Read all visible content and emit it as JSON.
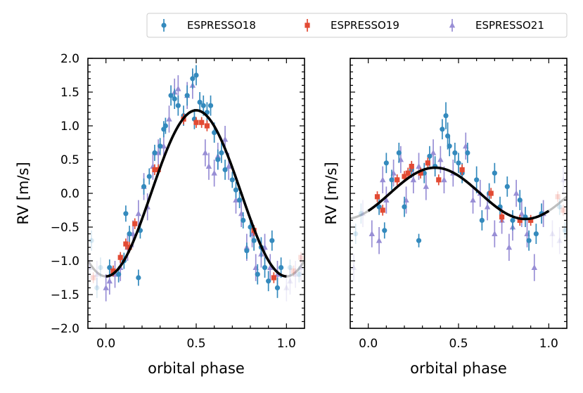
{
  "chart_data": [
    {
      "type": "scatter",
      "panel": "left",
      "title": "",
      "xlabel": "orbital phase",
      "ylabel": "RV [m/s]",
      "xlim": [
        -0.1,
        1.1
      ],
      "ylim": [
        -2.0,
        2.0
      ],
      "xticks": [
        0.0,
        0.5,
        1.0
      ],
      "xtick_labels": [
        "0.0",
        "0.5",
        "1.0"
      ],
      "yticks": [
        -2.0,
        -1.5,
        -1.0,
        -0.5,
        0.0,
        0.5,
        1.0,
        1.5,
        2.0
      ],
      "ytick_labels": [
        "−2.0",
        "−1.5",
        "−1.0",
        "−0.5",
        "0.0",
        "0.5",
        "1.0",
        "1.5",
        "2.0"
      ],
      "model": {
        "amplitude": 1.23,
        "peak_phase": 0.5,
        "harmonic": 1,
        "style": "black dashed over black solid"
      },
      "series": [
        {
          "name": "ESPRESSO18",
          "marker": "circle",
          "color": "#348ABD",
          "x": [
            0.02,
            0.07,
            0.1,
            0.11,
            0.13,
            0.18,
            0.19,
            0.21,
            0.24,
            0.27,
            0.3,
            0.32,
            0.33,
            0.36,
            0.38,
            0.4,
            0.43,
            0.45,
            0.48,
            0.49,
            0.5,
            0.52,
            0.54,
            0.56,
            0.58,
            0.6,
            0.62,
            0.64,
            0.66,
            0.7,
            0.72,
            0.74,
            0.76,
            0.78,
            0.8,
            0.82,
            0.84,
            0.86,
            0.88,
            0.9,
            0.92,
            0.95,
            0.97
          ],
          "y": [
            -1.1,
            -1.2,
            -1.0,
            -0.3,
            -0.6,
            -1.25,
            -0.55,
            0.1,
            0.25,
            0.6,
            0.7,
            0.95,
            1.0,
            1.45,
            1.4,
            1.3,
            1.15,
            1.45,
            1.7,
            1.1,
            1.75,
            1.35,
            1.3,
            1.2,
            1.3,
            0.9,
            0.5,
            0.6,
            0.35,
            0.2,
            0.05,
            -0.1,
            -0.4,
            -0.85,
            -0.5,
            -0.7,
            -1.2,
            -0.8,
            -1.1,
            -1.3,
            -0.7,
            -1.4,
            -1.1
          ],
          "err": [
            0.12,
            0.12,
            0.12,
            0.12,
            0.12,
            0.12,
            0.12,
            0.12,
            0.12,
            0.12,
            0.12,
            0.12,
            0.12,
            0.15,
            0.15,
            0.15,
            0.15,
            0.15,
            0.15,
            0.15,
            0.15,
            0.15,
            0.15,
            0.15,
            0.15,
            0.15,
            0.15,
            0.15,
            0.15,
            0.12,
            0.12,
            0.12,
            0.12,
            0.12,
            0.15,
            0.15,
            0.15,
            0.15,
            0.15,
            0.15,
            0.15,
            0.15,
            0.15
          ]
        },
        {
          "name": "ESPRESSO19",
          "marker": "square",
          "color": "#E24A33",
          "x": [
            0.04,
            0.08,
            0.11,
            0.13,
            0.16,
            0.27,
            0.29,
            0.43,
            0.5,
            0.53,
            0.56,
            0.82,
            0.93
          ],
          "y": [
            -1.15,
            -0.95,
            -0.75,
            -0.8,
            -0.45,
            0.35,
            0.35,
            1.1,
            1.05,
            1.05,
            1.0,
            -0.55,
            -1.25
          ],
          "err": [
            0.08,
            0.08,
            0.08,
            0.08,
            0.08,
            0.08,
            0.08,
            0.08,
            0.08,
            0.08,
            0.08,
            0.08,
            0.08
          ]
        },
        {
          "name": "ESPRESSO21",
          "marker": "triangle",
          "color": "#988ED5",
          "x": [
            0.0,
            0.02,
            0.05,
            0.08,
            0.12,
            0.15,
            0.18,
            0.21,
            0.23,
            0.26,
            0.29,
            0.32,
            0.35,
            0.38,
            0.4,
            0.45,
            0.48,
            0.55,
            0.57,
            0.6,
            0.62,
            0.66,
            0.68,
            0.72,
            0.75,
            0.78,
            0.81,
            0.83,
            0.86,
            0.88,
            0.91,
            0.95
          ],
          "y": [
            -1.4,
            -1.3,
            -1.2,
            -1.1,
            -0.8,
            -0.6,
            -0.3,
            0.1,
            -0.2,
            0.4,
            0.6,
            0.7,
            1.1,
            1.5,
            1.55,
            1.45,
            1.6,
            0.6,
            0.4,
            0.3,
            0.55,
            0.8,
            0.4,
            -0.1,
            -0.3,
            -0.8,
            -0.6,
            -1.1,
            -0.9,
            -0.8,
            -1.1,
            -1.2
          ],
          "err": [
            0.2,
            0.2,
            0.2,
            0.2,
            0.2,
            0.2,
            0.2,
            0.2,
            0.2,
            0.2,
            0.2,
            0.2,
            0.2,
            0.2,
            0.2,
            0.2,
            0.2,
            0.2,
            0.2,
            0.2,
            0.2,
            0.2,
            0.2,
            0.2,
            0.2,
            0.2,
            0.2,
            0.2,
            0.2,
            0.2,
            0.2,
            0.2
          ]
        }
      ]
    },
    {
      "type": "scatter",
      "panel": "right",
      "title": "",
      "xlabel": "orbital phase",
      "ylabel": "RV [m/s]",
      "xlim": [
        -0.1,
        1.1
      ],
      "ylim": [
        -2.0,
        2.0
      ],
      "xticks": [
        0.0,
        0.5,
        1.0
      ],
      "xtick_labels": [
        "0.0",
        "0.5",
        "1.0"
      ],
      "model": {
        "amplitude": 0.38,
        "peak_phase": 0.37,
        "harmonic": 1,
        "style": "black dashed over black solid"
      },
      "series": [
        {
          "name": "ESPRESSO18",
          "marker": "circle",
          "color": "#348ABD",
          "x": [
            0.06,
            0.09,
            0.1,
            0.13,
            0.17,
            0.2,
            0.24,
            0.28,
            0.31,
            0.34,
            0.37,
            0.41,
            0.43,
            0.44,
            0.45,
            0.48,
            0.5,
            0.52,
            0.55,
            0.6,
            0.63,
            0.67,
            0.7,
            0.73,
            0.77,
            0.8,
            0.84,
            0.87,
            0.89,
            0.93,
            0.96
          ],
          "y": [
            -0.2,
            -0.55,
            0.45,
            0.2,
            0.6,
            -0.2,
            0.35,
            -0.7,
            0.3,
            0.55,
            0.4,
            0.95,
            1.15,
            0.85,
            0.7,
            0.6,
            0.45,
            0.3,
            0.6,
            0.2,
            -0.4,
            0.0,
            0.3,
            -0.2,
            0.1,
            -0.4,
            -0.1,
            -0.35,
            -0.7,
            -0.6,
            -0.3
          ],
          "err": [
            0.12,
            0.12,
            0.15,
            0.15,
            0.15,
            0.15,
            0.12,
            0.1,
            0.15,
            0.15,
            0.15,
            0.15,
            0.2,
            0.2,
            0.15,
            0.15,
            0.15,
            0.15,
            0.15,
            0.2,
            0.15,
            0.15,
            0.15,
            0.15,
            0.15,
            0.15,
            0.15,
            0.15,
            0.15,
            0.15,
            0.15
          ]
        },
        {
          "name": "ESPRESSO19",
          "marker": "square",
          "color": "#E24A33",
          "x": [
            0.05,
            0.08,
            0.16,
            0.2,
            0.22,
            0.24,
            0.29,
            0.33,
            0.39,
            0.52,
            0.68,
            0.74,
            0.84,
            0.9
          ],
          "y": [
            -0.05,
            -0.25,
            0.2,
            0.25,
            0.3,
            0.4,
            0.3,
            0.45,
            0.2,
            0.35,
            0.0,
            -0.35,
            -0.4,
            -0.4
          ],
          "err": [
            0.08,
            0.08,
            0.08,
            0.08,
            0.08,
            0.08,
            0.08,
            0.08,
            0.08,
            0.08,
            0.08,
            0.08,
            0.08,
            0.08
          ]
        },
        {
          "name": "ESPRESSO21",
          "marker": "triangle",
          "color": "#988ED5",
          "x": [
            0.02,
            0.06,
            0.08,
            0.1,
            0.14,
            0.18,
            0.21,
            0.25,
            0.28,
            0.32,
            0.36,
            0.4,
            0.42,
            0.47,
            0.54,
            0.58,
            0.62,
            0.66,
            0.7,
            0.74,
            0.78,
            0.8,
            0.82,
            0.85,
            0.88,
            0.92,
            0.97
          ],
          "y": [
            -0.6,
            -0.7,
            0.2,
            -0.1,
            0.3,
            0.5,
            -0.1,
            0.2,
            0.4,
            0.1,
            0.6,
            0.5,
            0.2,
            0.3,
            0.7,
            -0.1,
            0.0,
            -0.2,
            -0.6,
            -0.4,
            -0.8,
            -0.5,
            0.0,
            -0.3,
            -0.6,
            -1.1,
            -0.3
          ],
          "err": [
            0.2,
            0.2,
            0.2,
            0.2,
            0.2,
            0.2,
            0.2,
            0.2,
            0.2,
            0.2,
            0.2,
            0.2,
            0.2,
            0.2,
            0.2,
            0.2,
            0.2,
            0.2,
            0.2,
            0.2,
            0.2,
            0.2,
            0.2,
            0.2,
            0.2,
            0.2,
            0.2
          ]
        }
      ]
    }
  ],
  "legend": {
    "placement": "top-right",
    "entries": [
      {
        "label": "ESPRESSO18",
        "marker": "circle",
        "color": "#348ABD"
      },
      {
        "label": "ESPRESSO19",
        "marker": "square",
        "color": "#E24A33"
      },
      {
        "label": "ESPRESSO21",
        "marker": "triangle",
        "color": "#988ED5"
      }
    ]
  }
}
